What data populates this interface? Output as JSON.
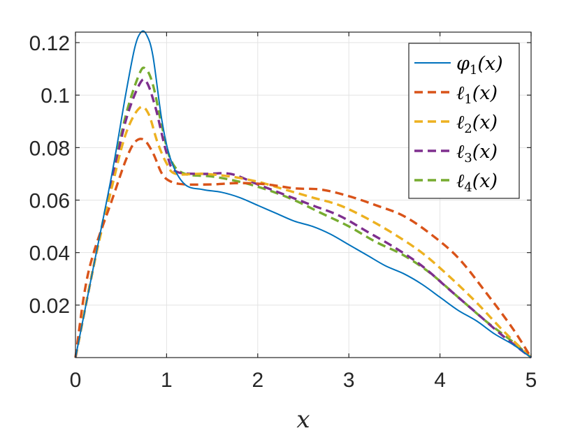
{
  "chart_data": {
    "type": "line",
    "title": "",
    "xlabel": "x",
    "ylabel": "",
    "xlim": [
      0,
      5
    ],
    "ylim": [
      0,
      0.124
    ],
    "xticks": [
      0,
      1,
      2,
      3,
      4,
      5
    ],
    "xtick_labels": [
      "0",
      "1",
      "2",
      "3",
      "4",
      "5"
    ],
    "yticks": [
      0.02,
      0.04,
      0.06,
      0.08,
      0.1,
      0.12
    ],
    "ytick_labels": [
      "0.02",
      "0.04",
      "0.06",
      "0.08",
      "0.1",
      "0.12"
    ],
    "grid": true,
    "legend_position": "top-right",
    "series": [
      {
        "name": "φ1(x)",
        "base": "φ",
        "sub": "1",
        "arg": "(x)",
        "color": "#0072BD",
        "style": "solid",
        "points": [
          [
            0,
            0
          ],
          [
            0.2,
            0.035
          ],
          [
            0.4,
            0.07
          ],
          [
            0.55,
            0.1
          ],
          [
            0.65,
            0.118
          ],
          [
            0.72,
            0.124
          ],
          [
            0.78,
            0.123
          ],
          [
            0.85,
            0.115
          ],
          [
            0.95,
            0.09
          ],
          [
            1.05,
            0.075
          ],
          [
            1.2,
            0.066
          ],
          [
            1.4,
            0.064
          ],
          [
            1.6,
            0.063
          ],
          [
            1.8,
            0.061
          ],
          [
            2.0,
            0.058
          ],
          [
            2.2,
            0.055
          ],
          [
            2.4,
            0.052
          ],
          [
            2.6,
            0.05
          ],
          [
            2.8,
            0.047
          ],
          [
            3.0,
            0.043
          ],
          [
            3.2,
            0.039
          ],
          [
            3.4,
            0.035
          ],
          [
            3.6,
            0.032
          ],
          [
            3.8,
            0.028
          ],
          [
            4.0,
            0.023
          ],
          [
            4.2,
            0.018
          ],
          [
            4.4,
            0.014
          ],
          [
            4.6,
            0.009
          ],
          [
            4.8,
            0.005
          ],
          [
            5.0,
            0
          ]
        ]
      },
      {
        "name": "ℓ1(x)",
        "base": "ℓ",
        "sub": "1",
        "arg": "(x)",
        "color": "#D95319",
        "style": "dashed",
        "points": [
          [
            0,
            0
          ],
          [
            0.1,
            0.025
          ],
          [
            0.2,
            0.04
          ],
          [
            0.4,
            0.06
          ],
          [
            0.55,
            0.075
          ],
          [
            0.65,
            0.082
          ],
          [
            0.75,
            0.083
          ],
          [
            0.85,
            0.078
          ],
          [
            0.95,
            0.07
          ],
          [
            1.05,
            0.067
          ],
          [
            1.2,
            0.066
          ],
          [
            1.5,
            0.066
          ],
          [
            1.8,
            0.0665
          ],
          [
            2.1,
            0.066
          ],
          [
            2.4,
            0.0645
          ],
          [
            2.7,
            0.064
          ],
          [
            3.0,
            0.0615
          ],
          [
            3.3,
            0.058
          ],
          [
            3.6,
            0.054
          ],
          [
            3.9,
            0.047
          ],
          [
            4.2,
            0.038
          ],
          [
            4.5,
            0.025
          ],
          [
            4.8,
            0.011
          ],
          [
            5.0,
            0
          ]
        ]
      },
      {
        "name": "ℓ2(x)",
        "base": "ℓ",
        "sub": "2",
        "arg": "(x)",
        "color": "#EDB120",
        "style": "dashed",
        "points": [
          [
            0,
            0
          ],
          [
            0.2,
            0.035
          ],
          [
            0.4,
            0.065
          ],
          [
            0.55,
            0.085
          ],
          [
            0.7,
            0.095
          ],
          [
            0.8,
            0.093
          ],
          [
            0.9,
            0.082
          ],
          [
            1.0,
            0.074
          ],
          [
            1.1,
            0.07
          ],
          [
            1.4,
            0.07
          ],
          [
            1.7,
            0.069
          ],
          [
            2.0,
            0.067
          ],
          [
            2.3,
            0.064
          ],
          [
            2.6,
            0.061
          ],
          [
            2.9,
            0.058
          ],
          [
            3.2,
            0.053
          ],
          [
            3.5,
            0.047
          ],
          [
            3.8,
            0.04
          ],
          [
            4.1,
            0.031
          ],
          [
            4.4,
            0.021
          ],
          [
            4.7,
            0.01
          ],
          [
            5.0,
            0
          ]
        ]
      },
      {
        "name": "ℓ3(x)",
        "base": "ℓ",
        "sub": "3",
        "arg": "(x)",
        "color": "#7E2F8E",
        "style": "dashed",
        "points": [
          [
            0,
            0
          ],
          [
            0.2,
            0.035
          ],
          [
            0.4,
            0.067
          ],
          [
            0.55,
            0.09
          ],
          [
            0.7,
            0.104
          ],
          [
            0.78,
            0.105
          ],
          [
            0.88,
            0.095
          ],
          [
            1.0,
            0.078
          ],
          [
            1.1,
            0.071
          ],
          [
            1.4,
            0.07
          ],
          [
            1.7,
            0.07
          ],
          [
            2.0,
            0.066
          ],
          [
            2.3,
            0.062
          ],
          [
            2.6,
            0.058
          ],
          [
            2.9,
            0.054
          ],
          [
            3.2,
            0.048
          ],
          [
            3.5,
            0.042
          ],
          [
            3.8,
            0.035
          ],
          [
            4.1,
            0.026
          ],
          [
            4.4,
            0.017
          ],
          [
            4.7,
            0.008
          ],
          [
            5.0,
            0
          ]
        ]
      },
      {
        "name": "ℓ4(x)",
        "base": "ℓ",
        "sub": "4",
        "arg": "(x)",
        "color": "#77AC30",
        "style": "dashed",
        "points": [
          [
            0,
            0
          ],
          [
            0.2,
            0.035
          ],
          [
            0.4,
            0.068
          ],
          [
            0.55,
            0.092
          ],
          [
            0.7,
            0.108
          ],
          [
            0.77,
            0.11
          ],
          [
            0.85,
            0.104
          ],
          [
            0.95,
            0.088
          ],
          [
            1.05,
            0.075
          ],
          [
            1.2,
            0.07
          ],
          [
            1.5,
            0.069
          ],
          [
            1.8,
            0.067
          ],
          [
            2.1,
            0.064
          ],
          [
            2.4,
            0.06
          ],
          [
            2.7,
            0.055
          ],
          [
            3.0,
            0.05
          ],
          [
            3.3,
            0.044
          ],
          [
            3.6,
            0.039
          ],
          [
            3.9,
            0.032
          ],
          [
            4.2,
            0.023
          ],
          [
            4.5,
            0.014
          ],
          [
            4.8,
            0.006
          ],
          [
            5.0,
            0
          ]
        ]
      }
    ]
  }
}
